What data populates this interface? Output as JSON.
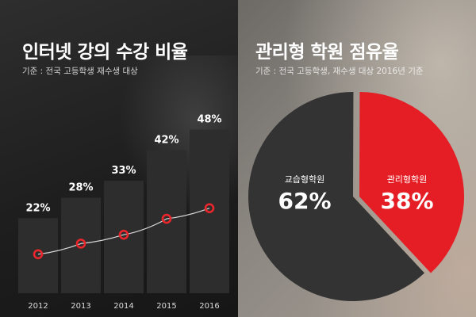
{
  "left": {
    "title": "인터넷 강의 수강 비율",
    "subtitle": "기준 : 전국 고등학생 재수생 대상"
  },
  "right": {
    "title": "관리형 학원 점유율",
    "subtitle": "기준 : 전국 고등학생, 재수생 대상 2016년 기준"
  },
  "colors": {
    "bar": "#2d2d2d",
    "line": "#d9d9d9",
    "marker": "#e8262b",
    "pie_major": "#333333",
    "pie_minor": "#e51e25"
  },
  "chart_data": [
    {
      "type": "bar",
      "title": "인터넷 강의 수강 비율",
      "subtitle": "기준 : 전국 고등학생 재수생 대상",
      "categories": [
        "2012",
        "2013",
        "2014",
        "2015",
        "2016"
      ],
      "values": [
        22,
        28,
        33,
        42,
        48
      ],
      "value_labels": [
        "22%",
        "28%",
        "33%",
        "42%",
        "48%"
      ],
      "overlay": "line with red circle markers",
      "ylim": [
        0,
        50
      ],
      "grid": false
    },
    {
      "type": "pie",
      "title": "관리형 학원 점유율",
      "subtitle": "기준 : 전국 고등학생, 재수생 대상 2016년 기준",
      "slices": [
        {
          "label": "교습형학원",
          "value": 62,
          "value_label": "62%"
        },
        {
          "label": "관리형학원",
          "value": 38,
          "value_label": "38%"
        }
      ]
    }
  ]
}
